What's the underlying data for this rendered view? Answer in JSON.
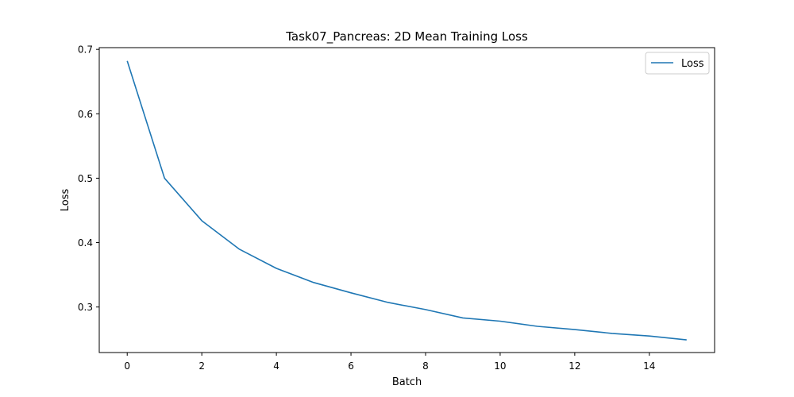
{
  "chart_data": {
    "type": "line",
    "title": "Task07_Pancreas: 2D Mean Training Loss",
    "xlabel": "Batch",
    "ylabel": "Loss",
    "xlim": [
      -0.75,
      15.75
    ],
    "ylim": [
      0.2293,
      0.7027
    ],
    "xticks": [
      0,
      2,
      4,
      6,
      8,
      10,
      12,
      14
    ],
    "yticks": [
      0.3,
      0.4,
      0.5,
      0.6,
      0.7
    ],
    "grid": false,
    "legend_position": "top-right",
    "series": [
      {
        "name": "Loss",
        "color": "#1f77b4",
        "x": [
          0,
          1,
          2,
          3,
          4,
          5,
          6,
          7,
          8,
          9,
          10,
          11,
          12,
          13,
          14,
          15
        ],
        "y": [
          0.682,
          0.5,
          0.434,
          0.39,
          0.36,
          0.338,
          0.322,
          0.307,
          0.296,
          0.283,
          0.278,
          0.27,
          0.265,
          0.259,
          0.255,
          0.249
        ]
      }
    ]
  }
}
